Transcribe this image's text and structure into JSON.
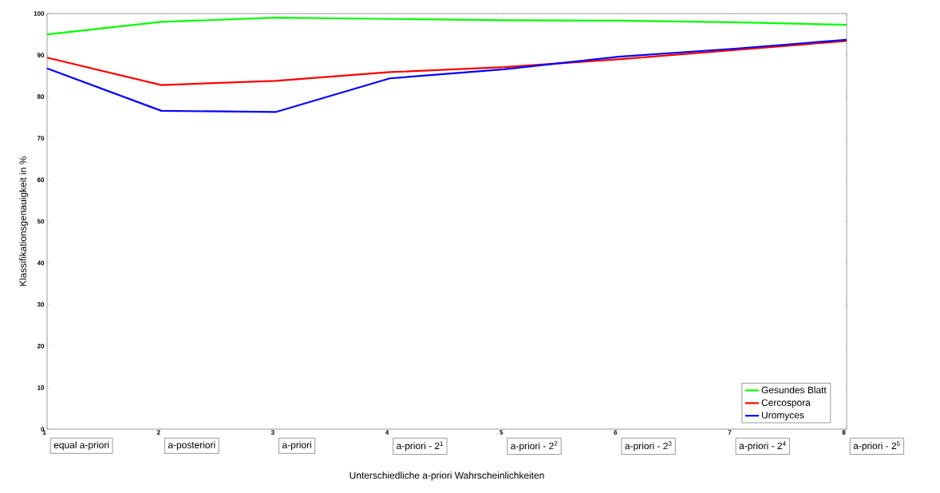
{
  "chart_data": {
    "type": "line",
    "xlabel": "Unterschiedliche a-priori Wahrscheinlichkeiten",
    "ylabel": "Klassifikationsgenauigkeit in %",
    "x": [
      1,
      2,
      3,
      4,
      5,
      6,
      7,
      8
    ],
    "series": [
      {
        "name": "Gesundes Blatt",
        "color": "#00ff00",
        "values": [
          95.0,
          98.0,
          99.0,
          98.7,
          98.4,
          98.3,
          97.9,
          97.3
        ]
      },
      {
        "name": "Cercospora",
        "color": "#ff0000",
        "values": [
          89.4,
          82.8,
          83.8,
          85.9,
          87.1,
          89.0,
          91.2,
          93.4
        ]
      },
      {
        "name": "Uromyces",
        "color": "#0000ff",
        "values": [
          86.8,
          76.6,
          76.3,
          84.4,
          86.6,
          89.6,
          91.5,
          93.7
        ]
      }
    ],
    "xlim": [
      1,
      8
    ],
    "xticks": [
      1,
      2,
      3,
      4,
      5,
      6,
      7,
      8
    ],
    "ylim": [
      0,
      100
    ],
    "yticks": [
      0,
      10,
      20,
      30,
      40,
      50,
      60,
      70,
      80,
      90,
      100
    ],
    "annotations": [
      "equal a-priori",
      "a-posteriori",
      "a-priori",
      "a-priori - 2$^{1}$",
      "a-priori - 2$^{2}$",
      "a-priori - 2$^{3}$",
      "a-priori - 2$^{4}$",
      "a-priori - 2$^{5}$"
    ],
    "grid": false,
    "legend": "bottom right",
    "marker": "none",
    "line_style": "solid"
  }
}
